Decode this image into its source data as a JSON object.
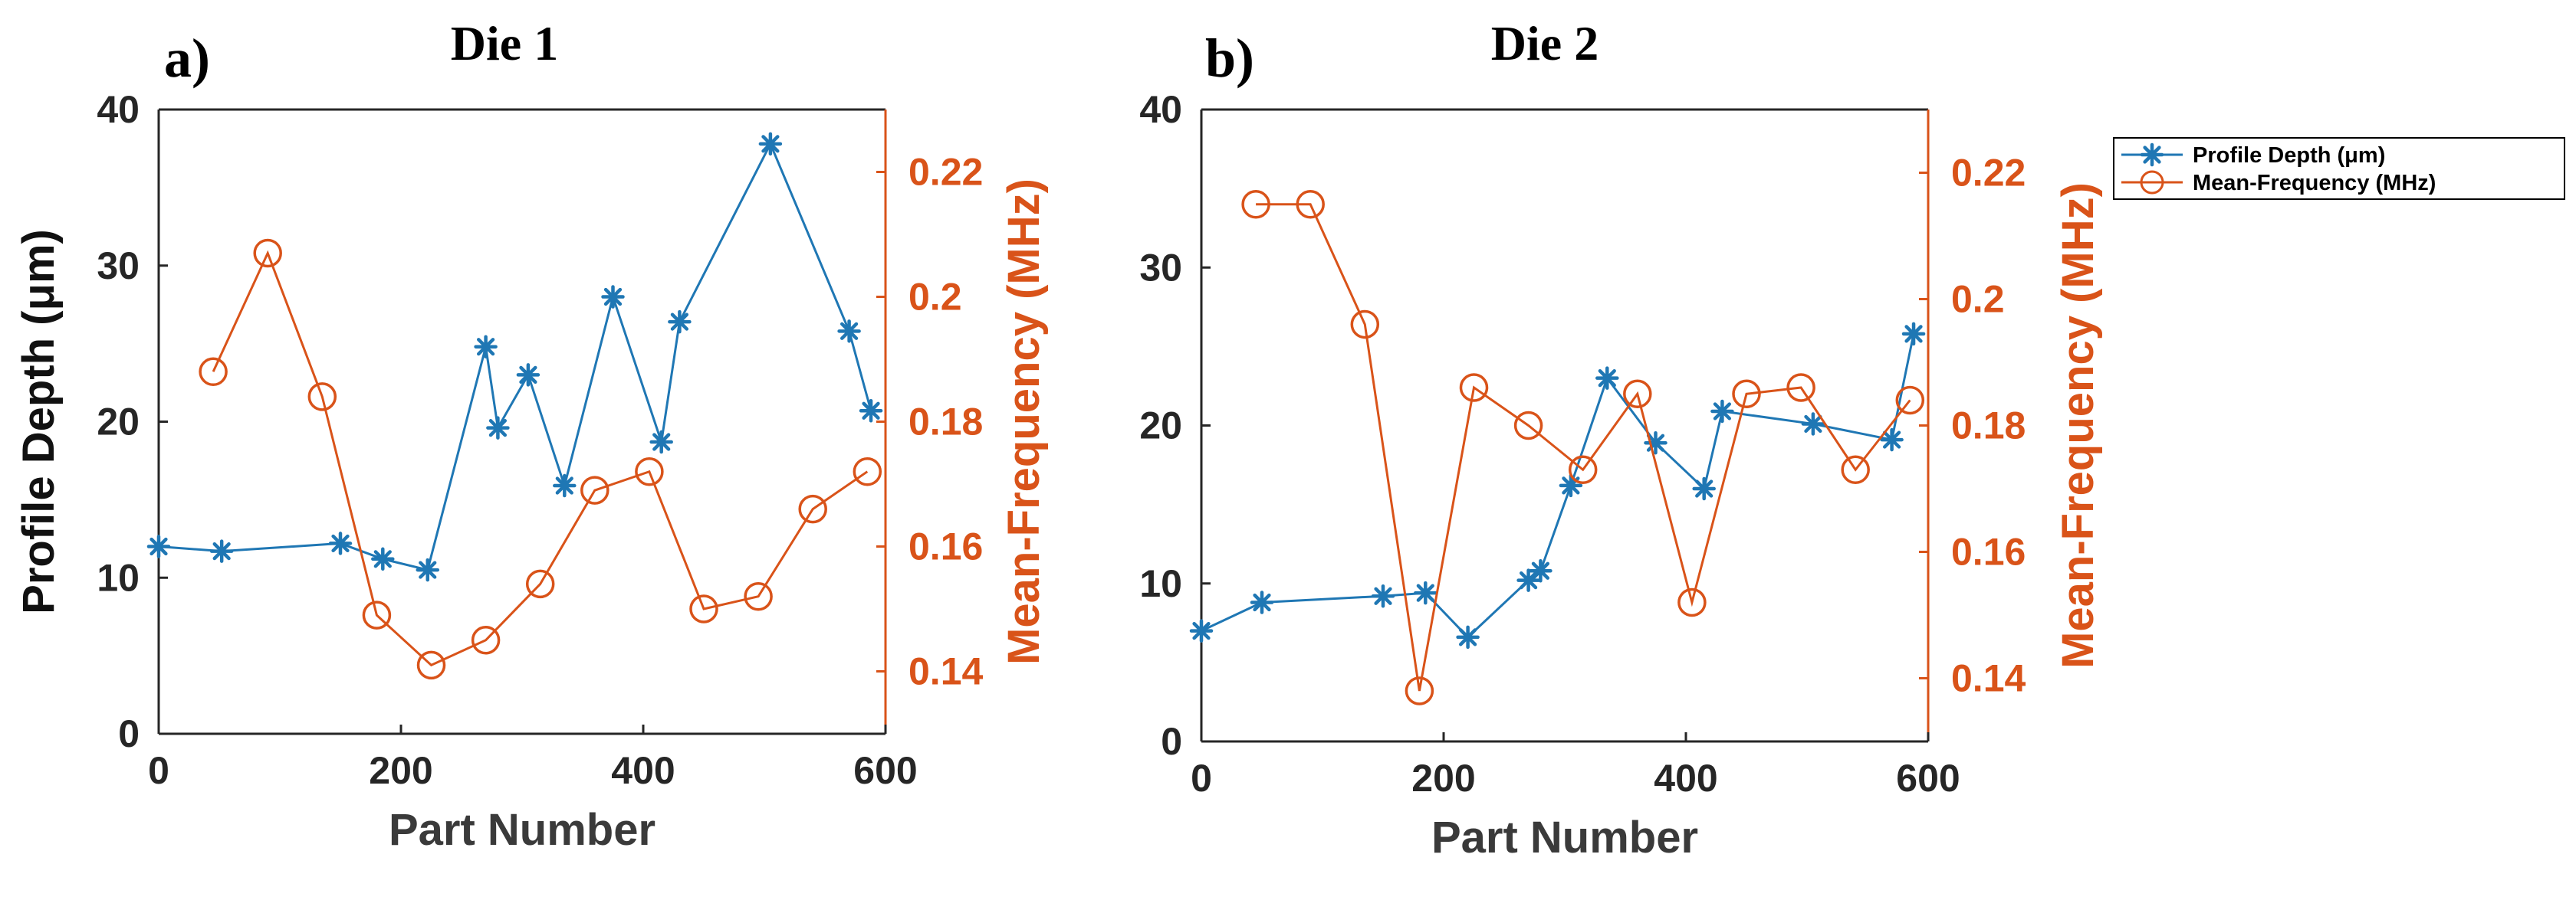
{
  "colors": {
    "depth": "#1f77b4",
    "freq": "#d95319",
    "axis": "#262626",
    "background": "#ffffff"
  },
  "legend": {
    "depth_label": "Profile Depth (μm)",
    "freq_label": "Mean-Frequency (MHz)",
    "depth_marker": "asterisk",
    "freq_marker": "circle",
    "placement": "right of panel b"
  },
  "chart_data": [
    {
      "type": "line",
      "panel_label": "a)",
      "title": "Die 1",
      "xlabel": "Part Number",
      "ylabel_left": "Profile Depth (μm)",
      "ylabel_right": "Mean-Frequency (MHz)",
      "xlim": [
        0,
        600
      ],
      "ylim_left": [
        0,
        40
      ],
      "ylim_right": [
        0.13,
        0.23
      ],
      "xticks": [
        "0",
        "200",
        "400",
        "600"
      ],
      "yticks_left": [
        "0",
        "10",
        "20",
        "30",
        "40"
      ],
      "yticks_right": [
        "0.14",
        "0.16",
        "0.18",
        "0.2",
        "0.22"
      ],
      "grid": false,
      "series": [
        {
          "name": "Profile Depth (μm)",
          "axis": "left",
          "marker": "asterisk",
          "x": [
            0,
            52,
            150,
            185,
            222,
            270,
            280,
            305,
            335,
            375,
            415,
            430,
            505,
            570,
            588
          ],
          "y": [
            12,
            11.7,
            12.2,
            11.2,
            10.5,
            24.8,
            19.6,
            23,
            15.9,
            28,
            18.7,
            26.4,
            37.8,
            25.8,
            20.7
          ]
        },
        {
          "name": "Mean-Frequency (MHz)",
          "axis": "right",
          "marker": "circle",
          "x": [
            45,
            90,
            135,
            180,
            225,
            270,
            315,
            360,
            405,
            450,
            495,
            540,
            585
          ],
          "y": [
            0.188,
            0.207,
            0.184,
            0.149,
            0.141,
            0.145,
            0.154,
            0.169,
            0.172,
            0.15,
            0.152,
            0.166,
            0.172
          ]
        }
      ]
    },
    {
      "type": "line",
      "panel_label": "b)",
      "title": "Die 2",
      "xlabel": "Part Number",
      "ylabel_left": "",
      "ylabel_right": "Mean-Frequency (MHz)",
      "xlim": [
        0,
        600
      ],
      "ylim_left": [
        0,
        40
      ],
      "ylim_right": [
        0.13,
        0.23
      ],
      "xticks": [
        "0",
        "200",
        "400",
        "600"
      ],
      "yticks_left": [
        "0",
        "10",
        "20",
        "30",
        "40"
      ],
      "yticks_right": [
        "0.14",
        "0.16",
        "0.18",
        "0.2",
        "0.22"
      ],
      "grid": false,
      "series": [
        {
          "name": "Profile Depth (μm)",
          "axis": "left",
          "marker": "asterisk",
          "x": [
            0,
            50,
            150,
            185,
            220,
            270,
            280,
            305,
            335,
            375,
            415,
            430,
            505,
            570,
            588
          ],
          "y": [
            7,
            8.8,
            9.2,
            9.4,
            6.6,
            10.2,
            10.8,
            16.2,
            23,
            18.9,
            16,
            20.9,
            20.1,
            19.1,
            25.8
          ]
        },
        {
          "name": "Mean-Frequency (MHz)",
          "axis": "right",
          "marker": "circle",
          "x": [
            45,
            90,
            135,
            180,
            225,
            270,
            315,
            360,
            405,
            450,
            495,
            540,
            585
          ],
          "y": [
            0.215,
            0.215,
            0.196,
            0.138,
            0.186,
            0.18,
            0.173,
            0.185,
            0.152,
            0.185,
            0.186,
            0.173,
            0.184
          ]
        }
      ]
    }
  ]
}
